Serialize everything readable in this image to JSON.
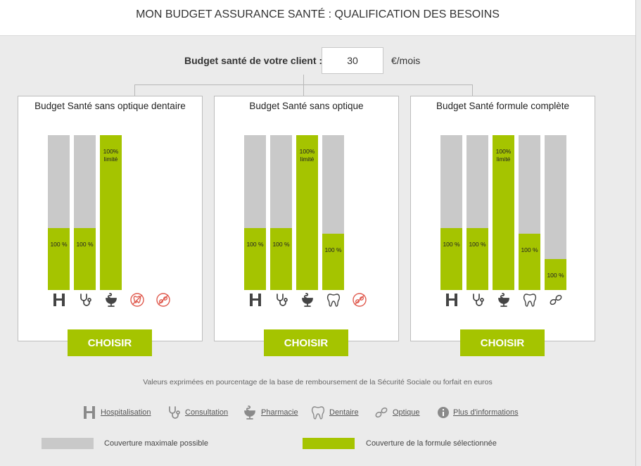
{
  "header": {
    "title": "MON BUDGET ASSURANCE SANTÉ : QUALIFICATION DES BESOINS"
  },
  "budget": {
    "label": "Budget santé de votre client :",
    "value": "30",
    "unit": "€/mois"
  },
  "colors": {
    "accent": "#a5c400",
    "bar_background": "#c9c9c9",
    "excluded": "#e05c50"
  },
  "cards": [
    {
      "title": "Budget Santé sans optique dentaire",
      "button": "CHOISIR",
      "bars": [
        {
          "icon": "hospital-icon",
          "fill": 0.4,
          "label": "100 %"
        },
        {
          "icon": "stethoscope-icon",
          "fill": 0.4,
          "label": "100 %"
        },
        {
          "icon": "pharmacy-icon",
          "fill": 1.0,
          "label": "100%\nlimité"
        }
      ],
      "excluded": [
        "dental-excluded-icon",
        "optical-excluded-icon"
      ]
    },
    {
      "title": "Budget Santé sans optique",
      "button": "CHOISIR",
      "bars": [
        {
          "icon": "hospital-icon",
          "fill": 0.4,
          "label": "100 %"
        },
        {
          "icon": "stethoscope-icon",
          "fill": 0.4,
          "label": "100 %"
        },
        {
          "icon": "pharmacy-icon",
          "fill": 1.0,
          "label": "100%\nlimité"
        },
        {
          "icon": "tooth-icon",
          "fill": 0.365,
          "label": "100 %"
        }
      ],
      "excluded": [
        "optical-excluded-icon"
      ]
    },
    {
      "title": "Budget Santé formule complète",
      "button": "CHOISIR",
      "bars": [
        {
          "icon": "hospital-icon",
          "fill": 0.4,
          "label": "100 %"
        },
        {
          "icon": "stethoscope-icon",
          "fill": 0.4,
          "label": "100 %"
        },
        {
          "icon": "pharmacy-icon",
          "fill": 1.0,
          "label": "100%\nlimité"
        },
        {
          "icon": "tooth-icon",
          "fill": 0.365,
          "label": "100 %"
        },
        {
          "icon": "glasses-icon",
          "fill": 0.2,
          "label": "100 %"
        }
      ],
      "excluded": []
    }
  ],
  "footer": {
    "note": "Valeurs exprimées en pourcentage de la base de remboursement de la Sécurité Sociale ou forfait en euros",
    "legend": [
      {
        "icon": "hospital-icon",
        "label": "Hospitalisation"
      },
      {
        "icon": "stethoscope-icon",
        "label": "Consultation"
      },
      {
        "icon": "pharmacy-icon",
        "label": "Pharmacie"
      },
      {
        "icon": "tooth-icon",
        "label": "Dentaire"
      },
      {
        "icon": "glasses-icon",
        "label": "Optique"
      },
      {
        "icon": "info-icon",
        "label": "Plus d'informations"
      }
    ],
    "swatches": [
      {
        "label": "Couverture maximale possible"
      },
      {
        "label": "Couverture de la formule sélectionnée"
      }
    ]
  }
}
